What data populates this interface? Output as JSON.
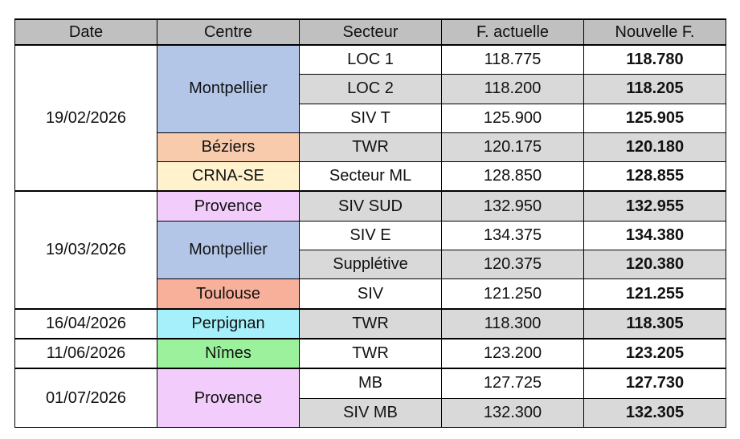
{
  "headers": [
    "Date",
    "Centre",
    "Secteur",
    "F. actuelle",
    "Nouvelle F."
  ],
  "colors": {
    "header": "#c0c0c0",
    "shaded_row": "#d9d9d9",
    "Montpellier": "#b4c6e7",
    "Béziers": "#f8cbad",
    "CRNA-SE": "#fff2cc",
    "Provence": "#f2ccfa",
    "Toulouse": "#f8b09a",
    "Perpignan": "#a5f0fb",
    "Nîmes": "#9cf29c"
  },
  "groups": [
    {
      "date": "19/02/2026",
      "centres": [
        {
          "name": "Montpellier",
          "rows": [
            {
              "secteur": "LOC 1",
              "actuelle": "118.775",
              "nouvelle": "118.780",
              "shaded": false
            },
            {
              "secteur": "LOC 2",
              "actuelle": "118.200",
              "nouvelle": "118.205",
              "shaded": true
            },
            {
              "secteur": "SIV T",
              "actuelle": "125.900",
              "nouvelle": "125.905",
              "shaded": false
            }
          ]
        },
        {
          "name": "Béziers",
          "rows": [
            {
              "secteur": "TWR",
              "actuelle": "120.175",
              "nouvelle": "120.180",
              "shaded": true
            }
          ]
        },
        {
          "name": "CRNA-SE",
          "rows": [
            {
              "secteur": "Secteur ML",
              "actuelle": "128.850",
              "nouvelle": "128.855",
              "shaded": false
            }
          ]
        }
      ]
    },
    {
      "date": "19/03/2026",
      "centres": [
        {
          "name": "Provence",
          "rows": [
            {
              "secteur": "SIV SUD",
              "actuelle": "132.950",
              "nouvelle": "132.955",
              "shaded": true
            }
          ]
        },
        {
          "name": "Montpellier",
          "rows": [
            {
              "secteur": "SIV E",
              "actuelle": "134.375",
              "nouvelle": "134.380",
              "shaded": false
            },
            {
              "secteur": "Supplétive",
              "actuelle": "120.375",
              "nouvelle": "120.380",
              "shaded": true
            }
          ]
        },
        {
          "name": "Toulouse",
          "rows": [
            {
              "secteur": "SIV",
              "actuelle": "121.250",
              "nouvelle": "121.255",
              "shaded": false
            }
          ]
        }
      ]
    },
    {
      "date": "16/04/2026",
      "centres": [
        {
          "name": "Perpignan",
          "rows": [
            {
              "secteur": "TWR",
              "actuelle": "118.300",
              "nouvelle": "118.305",
              "shaded": true
            }
          ]
        }
      ]
    },
    {
      "date": "11/06/2026",
      "centres": [
        {
          "name": "Nîmes",
          "rows": [
            {
              "secteur": "TWR",
              "actuelle": "123.200",
              "nouvelle": "123.205",
              "shaded": false
            }
          ]
        }
      ]
    },
    {
      "date": "01/07/2026",
      "centres": [
        {
          "name": "Provence",
          "rows": [
            {
              "secteur": "MB",
              "actuelle": "127.725",
              "nouvelle": "127.730",
              "shaded": false
            },
            {
              "secteur": "SIV MB",
              "actuelle": "132.300",
              "nouvelle": "132.305",
              "shaded": true
            }
          ]
        }
      ]
    }
  ]
}
